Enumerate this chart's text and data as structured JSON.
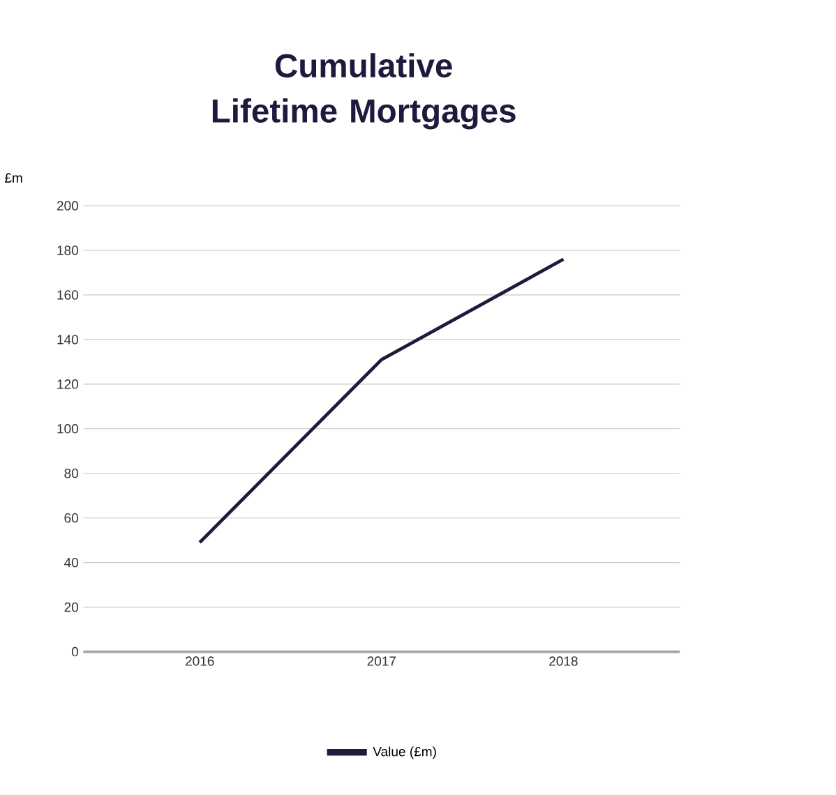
{
  "chart_data": {
    "type": "line",
    "title": "Cumulative Lifetime Mortgages",
    "ylabel": "£m",
    "categories": [
      "2016",
      "2017",
      "2018"
    ],
    "series": [
      {
        "name": "Value (£m)",
        "color": "#1f1a3d",
        "values": [
          49,
          131,
          176
        ]
      }
    ],
    "ylim": [
      0,
      200
    ],
    "yticks": [
      0,
      20,
      40,
      60,
      80,
      100,
      120,
      140,
      160,
      180,
      200
    ],
    "grid": "y",
    "legend": "bottom",
    "marker": "none",
    "line_style": "solid"
  }
}
